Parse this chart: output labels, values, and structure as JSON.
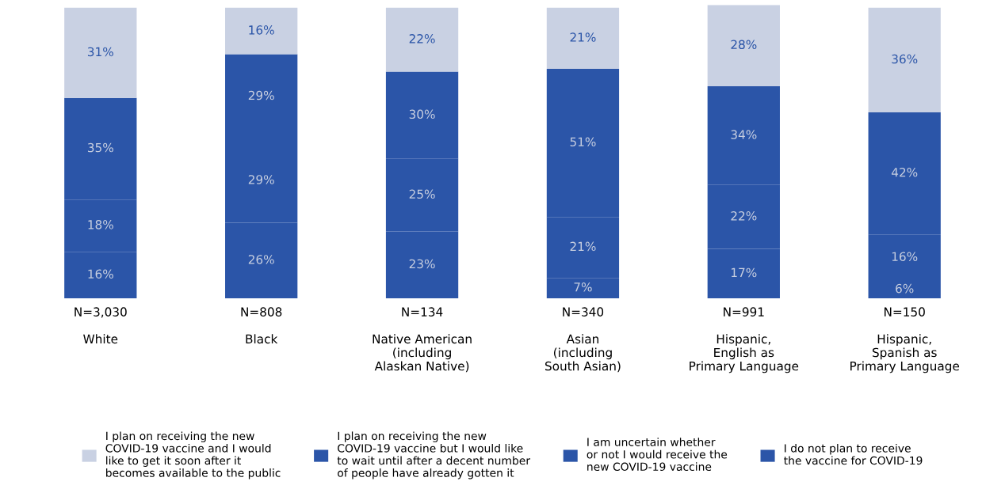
{
  "chart_data": {
    "type": "bar",
    "stacked": true,
    "legend": "bottom",
    "categories": [
      "N=3,030\n\nWhite",
      "N=808\n\nBlack",
      "N=134\n\nNative American\n(including\nAlaskan Native)",
      "N=340\n\nAsian\n(including\nSouth Asian)",
      "N=991\n\nHispanic,\nEnglish as\nPrimary Language",
      "N=150\n\nHispanic,\nSpanish as\nPrimary Language"
    ],
    "series": [
      {
        "name": "I do not plan to receive\nthe vaccine for COVID-19",
        "color": "#2b55a8",
        "values": [
          16,
          26,
          23,
          7,
          17,
          6
        ],
        "value_labels": [
          "16%",
          "26%",
          "23%",
          "7%",
          "17%",
          "6%"
        ]
      },
      {
        "name": "I am uncertain whether\nor not I would receive the\nnew COVID-19 vaccine",
        "color": "#2b55a8",
        "values": [
          18,
          29,
          25,
          21,
          22,
          16
        ],
        "value_labels": [
          "18%",
          "29%",
          "25%",
          "21%",
          "22%",
          "16%"
        ]
      },
      {
        "name": "I plan on receiving the new\nCOVID-19 vaccine but I would like\nto wait until after a decent number\nof people have already gotten it",
        "color": "#2b55a8",
        "values": [
          35,
          29,
          30,
          51,
          34,
          42
        ],
        "value_labels": [
          "35%",
          "29%",
          "30%",
          "51%",
          "34%",
          "42%"
        ]
      },
      {
        "name": "I plan on receiving the new\nCOVID-19 vaccine and I would\nlike to get it soon after it\nbecomes available to the public",
        "color": "#c9d1e3",
        "values": [
          31,
          16,
          22,
          21,
          28,
          36
        ],
        "value_labels": [
          "31%",
          "16%",
          "22%",
          "21%",
          "28%",
          "36%"
        ]
      }
    ]
  }
}
